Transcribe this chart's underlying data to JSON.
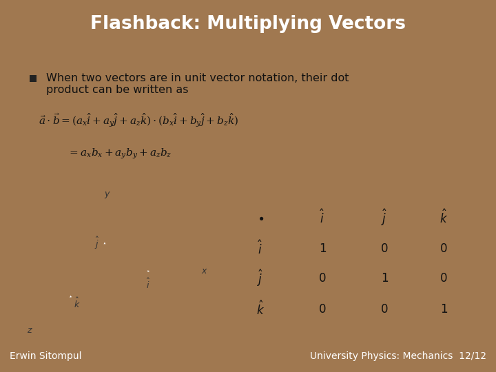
{
  "title": "Flashback: Multiplying Vectors",
  "title_bg_color": "#A07850",
  "title_text_color": "#FFFFFF",
  "slide_bg_color": "#A07850",
  "content_bg_color": "#FFFFFF",
  "bullet_text_line1": "When two vectors are in unit vector notation, their dot",
  "bullet_text_line2": "product can be written as",
  "footer_left": "Erwin Sitompul",
  "footer_right": "University Physics: Mechanics  12/12",
  "footer_bg_color": "#A07850",
  "footer_text_color": "#FFFFFF",
  "table_border_color": "#A07850",
  "axes_color": "#A07850",
  "content_left_border": "#A07850"
}
